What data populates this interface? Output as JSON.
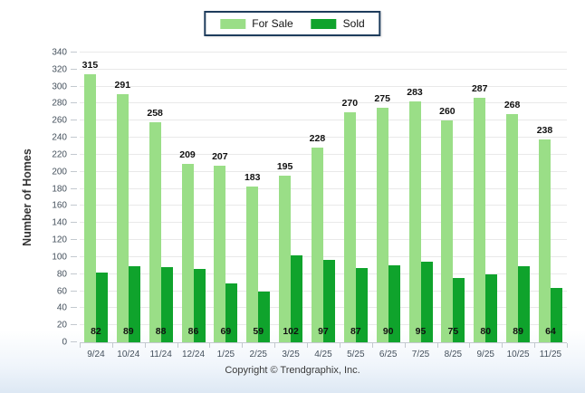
{
  "footer": {
    "text": "Copyright © Trendgraphix, Inc."
  },
  "colors": {
    "legend_border": "#1E3C5C",
    "gridline": "#E9E9E9",
    "axis_line": "#C3C9CF",
    "axis_text": "#44505C",
    "value_label": "#111111",
    "for_sale": "#9ADE87",
    "sold": "#0FA32C"
  },
  "chart_data": {
    "type": "bar",
    "title": "",
    "categories": [
      "9/24",
      "10/24",
      "11/24",
      "12/24",
      "1/25",
      "2/25",
      "3/25",
      "4/25",
      "5/25",
      "6/25",
      "7/25",
      "8/25",
      "9/25",
      "10/25",
      "11/25"
    ],
    "series": [
      {
        "name": "For Sale",
        "color": "#9ADE87",
        "values": [
          315,
          291,
          258,
          209,
          207,
          183,
          195,
          228,
          270,
          275,
          283,
          260,
          287,
          268,
          238
        ]
      },
      {
        "name": "Sold",
        "color": "#0FA32C",
        "values": [
          82,
          89,
          88,
          86,
          69,
          59,
          102,
          97,
          87,
          90,
          95,
          75,
          80,
          89,
          64
        ]
      }
    ],
    "xlabel": "",
    "ylabel": "Number of Homes",
    "ylim": [
      0,
      340
    ],
    "ytick_step": 20,
    "grid": true,
    "legend_position": "top-center",
    "value_label_placement": {
      "for_sale": "above-bar",
      "sold": "inside-bottom"
    }
  }
}
